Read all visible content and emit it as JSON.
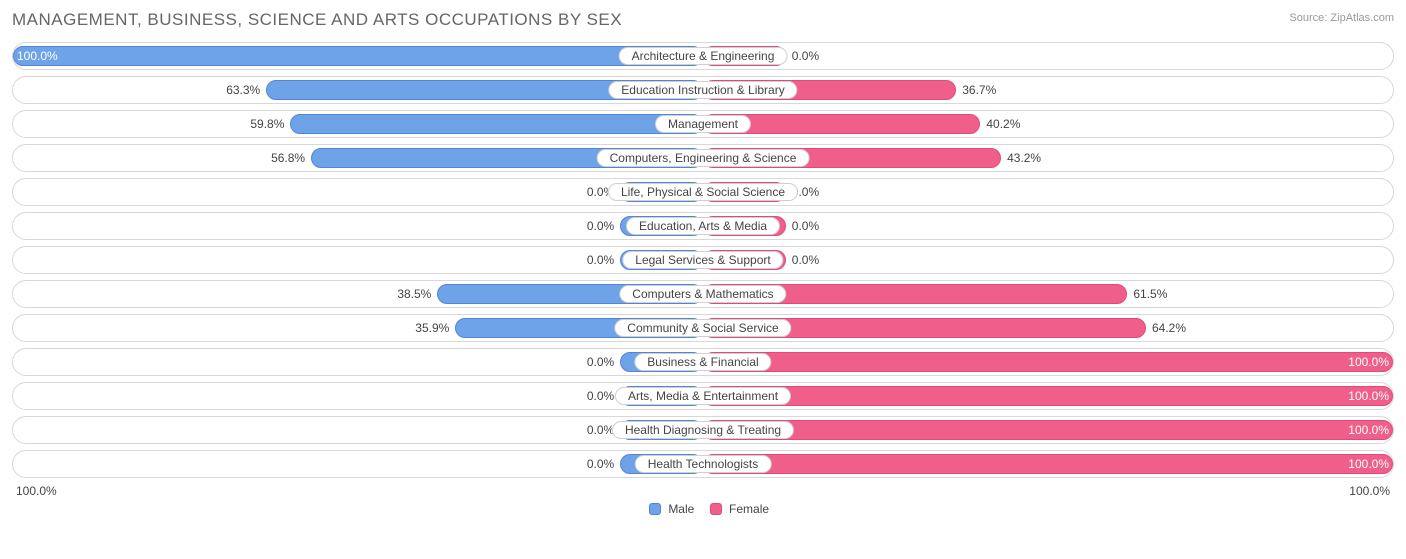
{
  "title": "MANAGEMENT, BUSINESS, SCIENCE AND ARTS OCCUPATIONS BY SEX",
  "source_label": "Source:",
  "source_name": "ZipAtlas.com",
  "axis": {
    "left": "100.0%",
    "right": "100.0%"
  },
  "legend": {
    "male": "Male",
    "female": "Female"
  },
  "colors": {
    "male_fill": "#6ea3e8",
    "male_border": "#4f86d6",
    "female_fill": "#ef5f8a",
    "female_border": "#e14a78",
    "row_border": "#d8d8d8",
    "background": "#ffffff",
    "text": "#444444",
    "title_text": "#666666"
  },
  "min_bar_pct": 12,
  "rows": [
    {
      "label": "Architecture & Engineering",
      "male": 100.0,
      "female": 0.0,
      "male_text": "100.0%",
      "female_text": "0.0%"
    },
    {
      "label": "Education Instruction & Library",
      "male": 63.3,
      "female": 36.7,
      "male_text": "63.3%",
      "female_text": "36.7%"
    },
    {
      "label": "Management",
      "male": 59.8,
      "female": 40.2,
      "male_text": "59.8%",
      "female_text": "40.2%"
    },
    {
      "label": "Computers, Engineering & Science",
      "male": 56.8,
      "female": 43.2,
      "male_text": "56.8%",
      "female_text": "43.2%"
    },
    {
      "label": "Life, Physical & Social Science",
      "male": 0.0,
      "female": 0.0,
      "male_text": "0.0%",
      "female_text": "0.0%"
    },
    {
      "label": "Education, Arts & Media",
      "male": 0.0,
      "female": 0.0,
      "male_text": "0.0%",
      "female_text": "0.0%"
    },
    {
      "label": "Legal Services & Support",
      "male": 0.0,
      "female": 0.0,
      "male_text": "0.0%",
      "female_text": "0.0%"
    },
    {
      "label": "Computers & Mathematics",
      "male": 38.5,
      "female": 61.5,
      "male_text": "38.5%",
      "female_text": "61.5%"
    },
    {
      "label": "Community & Social Service",
      "male": 35.9,
      "female": 64.2,
      "male_text": "35.9%",
      "female_text": "64.2%"
    },
    {
      "label": "Business & Financial",
      "male": 0.0,
      "female": 100.0,
      "male_text": "0.0%",
      "female_text": "100.0%"
    },
    {
      "label": "Arts, Media & Entertainment",
      "male": 0.0,
      "female": 100.0,
      "male_text": "0.0%",
      "female_text": "100.0%"
    },
    {
      "label": "Health Diagnosing & Treating",
      "male": 0.0,
      "female": 100.0,
      "male_text": "0.0%",
      "female_text": "100.0%"
    },
    {
      "label": "Health Technologists",
      "male": 0.0,
      "female": 100.0,
      "male_text": "0.0%",
      "female_text": "100.0%"
    }
  ]
}
